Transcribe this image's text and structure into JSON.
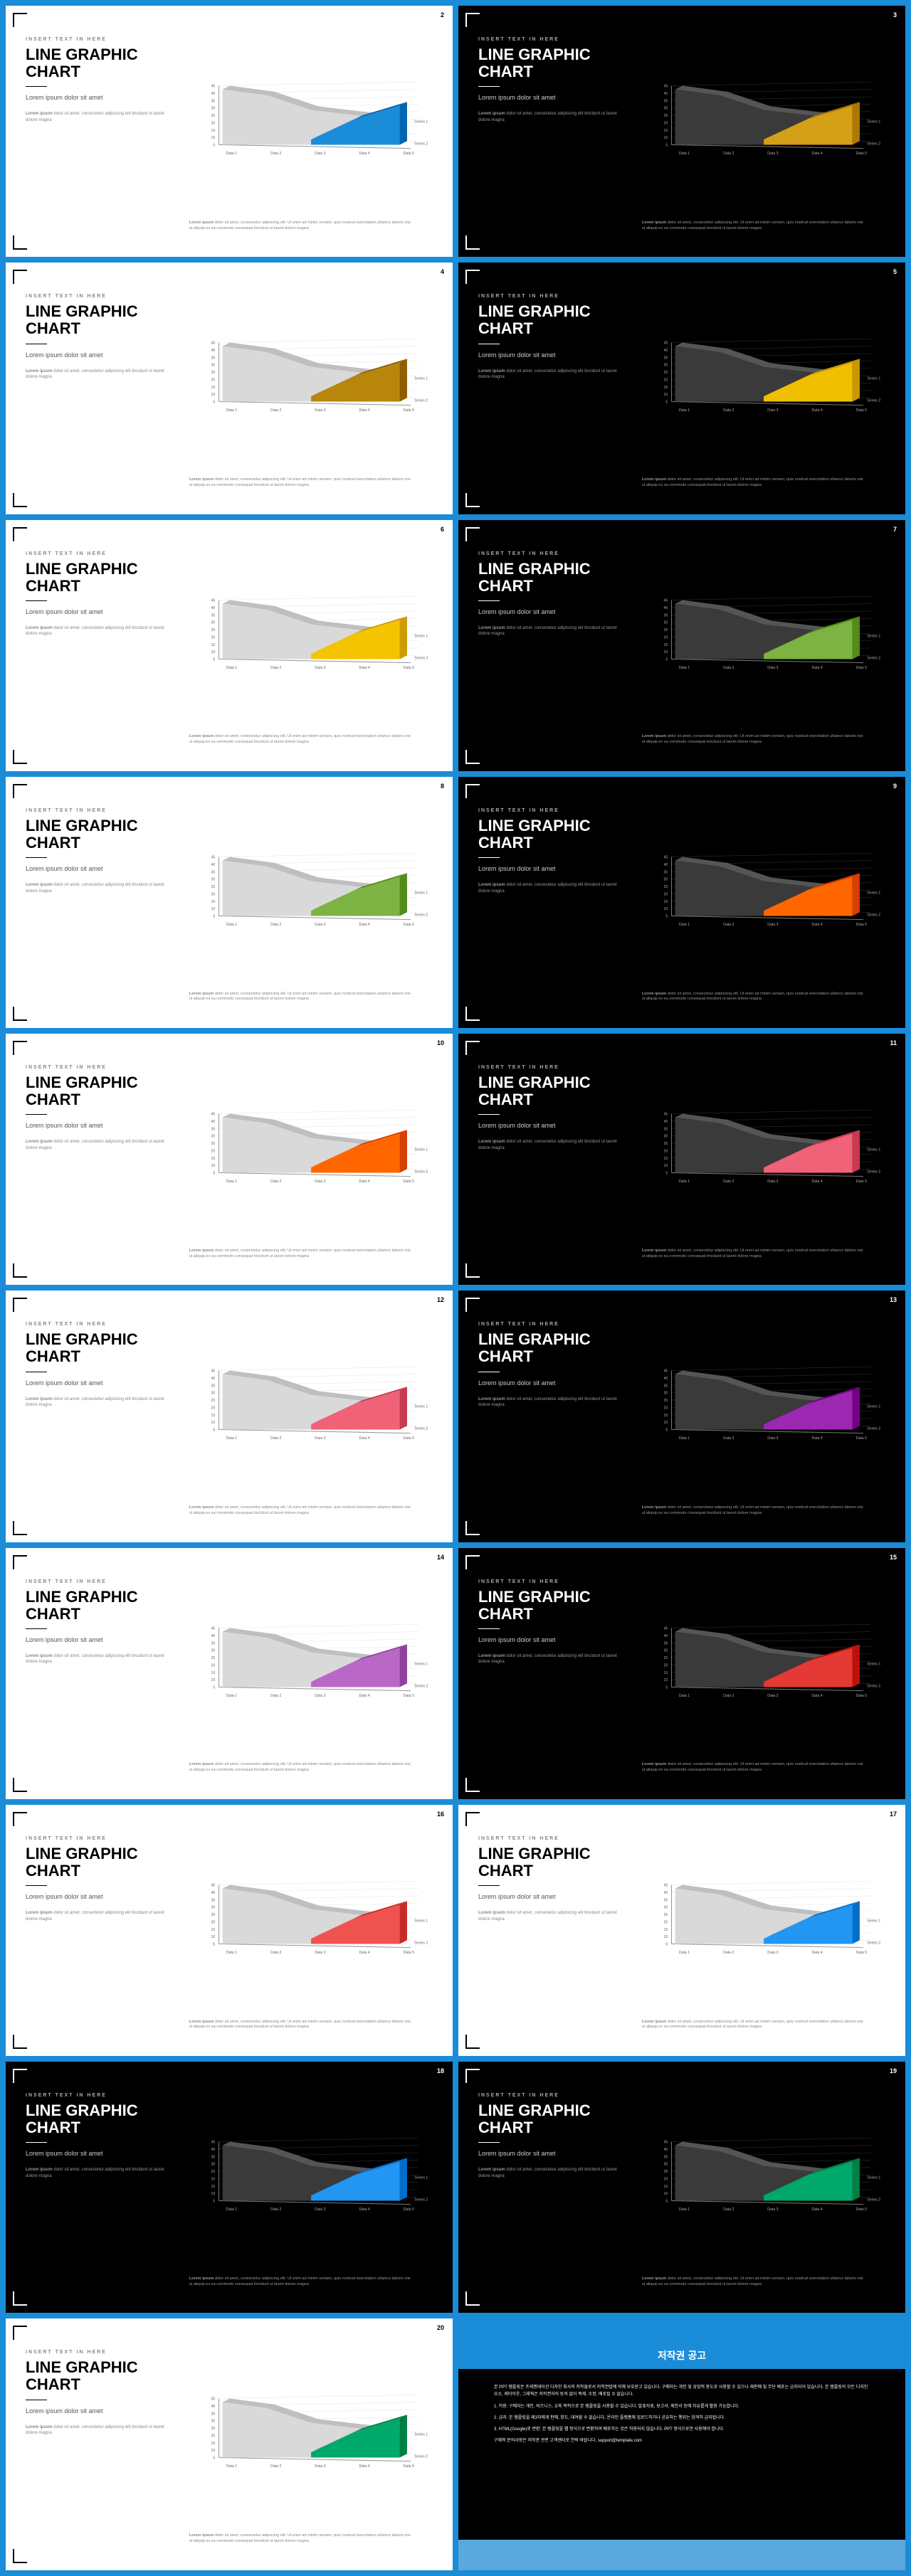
{
  "common": {
    "pretitle": "INSERT TEXT IN HERE",
    "title": "LINE GRAPHIC CHART",
    "subtitle": "Lorem ipsum dolor sit amet",
    "body_strong": "Lorem ipsum",
    "body_rest": " dolor sit amet, consectetur adipiscing elit tincidunt ut laoret dolore magna",
    "footer_strong": "Lorem ipsum",
    "footer_rest": " dolor sit amet, consectetur adipiscing elit. Ut enim ad minim veniam, quis nostrud exercitation ullamco laboris nisi ut aliquip ex ea commodo consequat tincidunt ut laoret dolore magna"
  },
  "chart": {
    "y_ticks": [
      "5",
      "10",
      "15",
      "20",
      "25",
      "30",
      "35",
      "40",
      "45"
    ],
    "x_labels": [
      "Data 1",
      "Data 2",
      "Data 3",
      "Data 4",
      "Data 5"
    ],
    "series_labels": [
      "Series 1",
      "Series 2"
    ],
    "grey_fill_light": "#d9d9d9",
    "grey_stroke_light": "#bfbfbf",
    "grey_fill_dark": "#3a3a3a",
    "grey_stroke_dark": "#555555",
    "grid_light": "#e5e5e5",
    "grid_dark": "#333333",
    "axis_light": "#999999",
    "axis_dark": "#777777",
    "series1_front": "45,20 105,28 165,48 225,55 285,62",
    "series1_back": "55,15 115,23 175,43 235,50 295,57",
    "series2_front": "165,88 225,60 285,42 285,95 225,95 165,95",
    "series2_back_offset": "175,83 235,55 295,37 295,90"
  },
  "slides": [
    {
      "num": "2",
      "theme": "light",
      "accent": "#1a8cd8"
    },
    {
      "num": "3",
      "theme": "dark",
      "accent": "#d4a017"
    },
    {
      "num": "4",
      "theme": "light",
      "accent": "#b8860b"
    },
    {
      "num": "5",
      "theme": "dark",
      "accent": "#f0c000"
    },
    {
      "num": "6",
      "theme": "light",
      "accent": "#f5c400"
    },
    {
      "num": "7",
      "theme": "dark",
      "accent": "#7cb342"
    },
    {
      "num": "8",
      "theme": "light",
      "accent": "#7cb342"
    },
    {
      "num": "9",
      "theme": "dark",
      "accent": "#ff6600"
    },
    {
      "num": "10",
      "theme": "light",
      "accent": "#ff6600"
    },
    {
      "num": "11",
      "theme": "dark",
      "accent": "#f06277"
    },
    {
      "num": "12",
      "theme": "light",
      "accent": "#f06277"
    },
    {
      "num": "13",
      "theme": "dark",
      "accent": "#9c27b0"
    },
    {
      "num": "14",
      "theme": "light",
      "accent": "#ba68c8"
    },
    {
      "num": "15",
      "theme": "dark",
      "accent": "#e53935"
    },
    {
      "num": "16",
      "theme": "light",
      "accent": "#ef5350"
    },
    {
      "num": "17",
      "theme": "light",
      "accent": "#2196f3"
    },
    {
      "num": "18",
      "theme": "dark",
      "accent": "#2196f3"
    },
    {
      "num": "19",
      "theme": "dark",
      "accent": "#00a86b"
    },
    {
      "num": "20",
      "theme": "light",
      "accent": "#00a86b"
    }
  ],
  "copyright": {
    "title": "저작권 공고",
    "p1": "본 PPT 템플릿은 프레젠테이션 디자인 회사의 저작물로서 저작권법에 의해 보호받고 있습니다. 구매자는 개인 및 상업적 용도로 사용할 수 있으나 재판매 및 무단 배포는 금지되어 있습니다. 본 템플릿의 모든 디자인 요소, 레이아웃, 그래픽은 저작권자의 동의 없이 복제, 수정, 배포될 수 없습니다.",
    "p2": "1. 허용: 구매자는 개인, 비즈니스, 교육 목적으로 본 템플릿을 사용할 수 있습니다. 발표자료, 보고서, 제안서 등에 자유롭게 활용 가능합니다.",
    "p3": "2. 금지: 본 템플릿을 제3자에게 판매, 양도, 대여할 수 없습니다. 온라인 플랫폼에 업로드하거나 공유하는 행위는 엄격히 금지됩니다.",
    "p4": "3. HTML(Google)로 변환: 본 템플릿을 웹 형식으로 변환하여 배포하는 것은 허용되지 않습니다. PPT 형식으로만 사용해야 합니다.",
    "p5": "구체적 문의사항은 저작권 관련 고객센터로 연락 바랍니다. support@template.com"
  }
}
